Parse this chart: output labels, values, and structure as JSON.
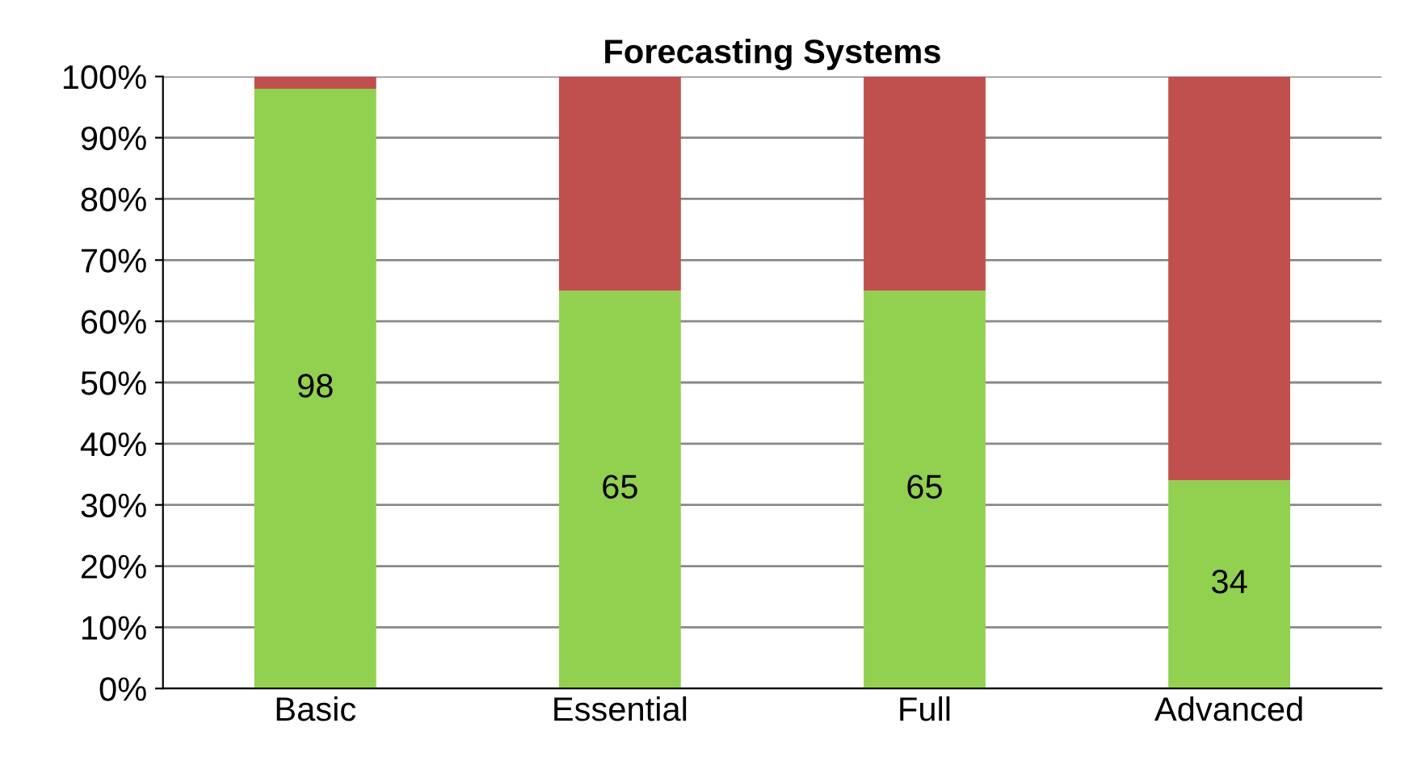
{
  "chart_data": {
    "type": "bar",
    "title": "Forecasting Systems",
    "stacked": true,
    "categories": [
      "Basic",
      "Essential",
      "Full",
      "Advanced"
    ],
    "series": [
      {
        "color": "#92d050",
        "values": [
          98,
          65,
          65,
          34
        ],
        "value_labels": [
          "98",
          "65",
          "65",
          "34"
        ]
      },
      {
        "color": "#c0504d",
        "values": [
          2,
          35,
          35,
          66
        ],
        "value_labels": [
          null,
          null,
          null,
          null
        ]
      }
    ],
    "ylim": [
      0,
      100
    ],
    "yticks": [
      {
        "value": 0,
        "label": "0%"
      },
      {
        "value": 10,
        "label": "10%"
      },
      {
        "value": 20,
        "label": "20%"
      },
      {
        "value": 30,
        "label": "30%"
      },
      {
        "value": 40,
        "label": "40%"
      },
      {
        "value": 50,
        "label": "50%"
      },
      {
        "value": 60,
        "label": "60%"
      },
      {
        "value": 70,
        "label": "70%"
      },
      {
        "value": 80,
        "label": "80%"
      },
      {
        "value": 90,
        "label": "90%"
      },
      {
        "value": 100,
        "label": "100%"
      }
    ],
    "grid": "y",
    "legend": false
  }
}
